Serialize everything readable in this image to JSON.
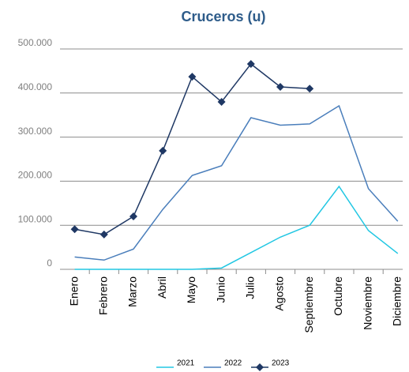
{
  "chart_data": {
    "type": "line",
    "title": "Cruceros (u)",
    "categories": [
      "Enero",
      "Febrero",
      "Marzo",
      "Abril",
      "Mayo",
      "Junio",
      "Julio",
      "Agosto",
      "Septiembre",
      "Octubre",
      "Noviembre",
      "Diciembre"
    ],
    "series": [
      {
        "name": "2021",
        "color": "#22c7e3",
        "values": [
          0,
          0,
          0,
          0,
          0,
          3000,
          38000,
          73000,
          100000,
          188000,
          88000,
          36000
        ]
      },
      {
        "name": "2022",
        "color": "#4a7ebb",
        "values": [
          28000,
          21000,
          46000,
          136000,
          213000,
          235000,
          344000,
          327000,
          330000,
          371000,
          183000,
          109000
        ]
      },
      {
        "name": "2023",
        "color": "#1f3864",
        "marker": "diamond",
        "values": [
          91000,
          79000,
          120000,
          269000,
          437000,
          380000,
          466000,
          414000,
          410000,
          null,
          null,
          null
        ]
      }
    ],
    "ylim": [
      0,
      500000
    ],
    "yticks": [
      0,
      {
        "value": 100000,
        "label": "100.000"
      },
      {
        "value": 200000,
        "label": "200.000"
      },
      {
        "value": 300000,
        "label": "300.000"
      },
      {
        "value": 400000,
        "label": "400.000"
      },
      {
        "value": 500000,
        "label": "500.000"
      }
    ],
    "grid": true,
    "legend": "bottom"
  }
}
